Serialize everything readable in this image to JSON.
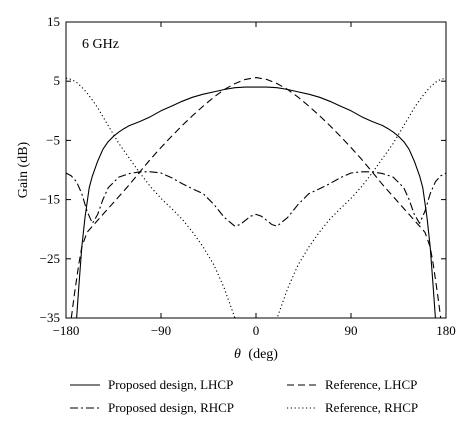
{
  "chart_data": {
    "type": "line",
    "annotation": "6 GHz",
    "xlabel_symbol": "θ",
    "xlabel_unit": "(deg)",
    "ylabel": "Gain (dB)",
    "xlim": [
      -180,
      180
    ],
    "ylim": [
      -35,
      15
    ],
    "xticks": [
      -180,
      -90,
      0,
      90,
      180
    ],
    "yticks": [
      -35,
      -25,
      -15,
      -5,
      5,
      15
    ],
    "xtick_labels": [
      "−180",
      "−90",
      "0",
      "90",
      "180"
    ],
    "ytick_labels": [
      "−35",
      "−25",
      "−15",
      "−5",
      "5",
      "15"
    ],
    "grid": false,
    "legend_position": "bottom",
    "series": [
      {
        "name": "Proposed design, LHCP",
        "dash": "solid",
        "x": [
          -170,
          -168,
          -165,
          -162,
          -158,
          -155,
          -150,
          -145,
          -140,
          -135,
          -130,
          -125,
          -120,
          -110,
          -100,
          -90,
          -80,
          -70,
          -60,
          -50,
          -40,
          -30,
          -20,
          -10,
          0,
          10,
          20,
          30,
          40,
          50,
          60,
          70,
          80,
          90,
          100,
          110,
          120,
          125,
          130,
          135,
          140,
          145,
          150,
          155,
          158,
          162,
          165,
          168,
          170
        ],
        "y": [
          -35,
          -30,
          -23,
          -18,
          -13,
          -11,
          -8.5,
          -6.5,
          -5.2,
          -4.3,
          -3.6,
          -3.0,
          -2.5,
          -1.8,
          -1.0,
          0,
          0.8,
          1.6,
          2.3,
          2.8,
          3.2,
          3.6,
          3.9,
          4.0,
          4.0,
          4.0,
          3.9,
          3.6,
          3.2,
          2.8,
          2.3,
          1.6,
          0.8,
          0,
          -1.0,
          -1.8,
          -2.5,
          -3.0,
          -3.6,
          -4.3,
          -5.2,
          -6.5,
          -8.5,
          -11,
          -13,
          -18,
          -23,
          -30,
          -35
        ]
      },
      {
        "name": "Reference, LHCP",
        "dash": "dashed",
        "x": [
          -175,
          -172,
          -168,
          -165,
          -160,
          -155,
          -150,
          -145,
          -140,
          -130,
          -120,
          -110,
          -100,
          -90,
          -80,
          -70,
          -60,
          -50,
          -40,
          -30,
          -20,
          -10,
          0,
          10,
          20,
          30,
          40,
          50,
          60,
          70,
          80,
          90,
          100,
          110,
          120,
          130,
          140,
          145,
          150,
          155,
          160,
          165,
          168,
          172,
          175
        ],
        "y": [
          -35,
          -31,
          -26,
          -23,
          -20.5,
          -19.5,
          -18.5,
          -17.5,
          -16.5,
          -14.5,
          -12.5,
          -10.3,
          -8.2,
          -6.2,
          -4.3,
          -2.5,
          -0.8,
          0.8,
          2.3,
          3.6,
          4.6,
          5.3,
          5.6,
          5.3,
          4.6,
          3.6,
          2.3,
          0.8,
          -0.8,
          -2.5,
          -4.3,
          -6.2,
          -8.2,
          -10.3,
          -12.5,
          -14.5,
          -16.5,
          -17.5,
          -18.5,
          -19.5,
          -20.5,
          -23,
          -26,
          -31,
          -35
        ]
      },
      {
        "name": "Proposed design, RHCP",
        "dash": "dashdot",
        "x": [
          -180,
          -175,
          -170,
          -165,
          -160,
          -155,
          -150,
          -145,
          -140,
          -130,
          -120,
          -110,
          -100,
          -90,
          -80,
          -70,
          -60,
          -50,
          -40,
          -30,
          -20,
          -15,
          -10,
          -5,
          0,
          5,
          10,
          15,
          20,
          30,
          40,
          50,
          60,
          70,
          80,
          90,
          100,
          110,
          120,
          130,
          140,
          145,
          150,
          155,
          160,
          165,
          170,
          175,
          180
        ],
        "y": [
          -10.5,
          -11,
          -12,
          -14,
          -17,
          -19,
          -17.5,
          -15,
          -13,
          -11.2,
          -10.6,
          -10.3,
          -10.3,
          -10.5,
          -11.3,
          -12.3,
          -13.2,
          -14,
          -15.8,
          -18,
          -19.5,
          -19.2,
          -18.5,
          -17.8,
          -17.5,
          -17.8,
          -18.5,
          -19.2,
          -19.5,
          -18,
          -15.8,
          -14,
          -13.2,
          -12.3,
          -11.3,
          -10.5,
          -10.3,
          -10.3,
          -10.6,
          -11.2,
          -13,
          -15,
          -17.5,
          -19,
          -17,
          -14,
          -12,
          -11,
          -10.5
        ]
      },
      {
        "name": "Reference, RHCP",
        "dash": "dotted",
        "x": [
          -180,
          -175,
          -170,
          -165,
          -160,
          -155,
          -150,
          -145,
          -140,
          -135,
          -130,
          -120,
          -110,
          -100,
          -90,
          -80,
          -70,
          -60,
          -50,
          -40,
          -35,
          -30,
          -25,
          -22,
          -20,
          20,
          22,
          25,
          30,
          35,
          40,
          50,
          60,
          70,
          80,
          90,
          100,
          110,
          120,
          130,
          135,
          140,
          145,
          150,
          155,
          160,
          165,
          170,
          175,
          180
        ],
        "y": [
          5.5,
          5.3,
          4.8,
          4.0,
          3.0,
          1.8,
          0.5,
          -1.0,
          -2.5,
          -4.0,
          -5.5,
          -8.0,
          -10.5,
          -12.8,
          -14.8,
          -16.5,
          -18.3,
          -20.5,
          -23,
          -26,
          -28,
          -30,
          -32.5,
          -34,
          -35,
          -35,
          -34,
          -32.5,
          -30,
          -28,
          -26,
          -23,
          -20.5,
          -18.3,
          -16.5,
          -14.8,
          -12.8,
          -10.5,
          -8.0,
          -5.5,
          -4.0,
          -2.5,
          -1.0,
          0.5,
          1.8,
          3.0,
          4.0,
          4.8,
          5.3,
          5.5
        ]
      }
    ]
  }
}
